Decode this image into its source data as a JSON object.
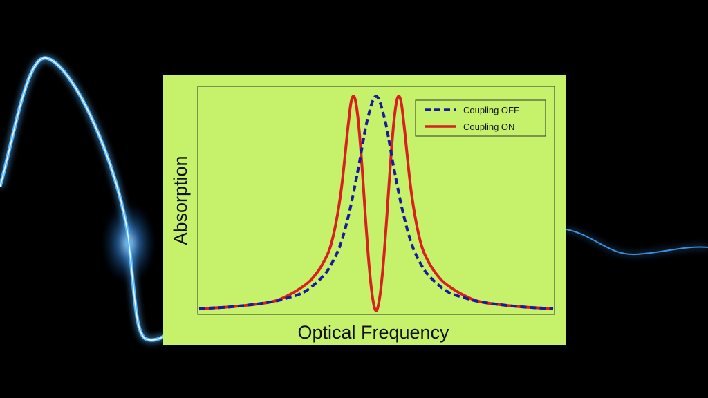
{
  "colors": {
    "background": "#000000",
    "panel": "#c6f26b",
    "light_streak": "#58b6ff",
    "series_off": "#1a1a9e",
    "series_on": "#d8201e"
  },
  "chart_data": {
    "type": "line",
    "title": "",
    "xlabel": "Optical Frequency",
    "ylabel": "Absorption",
    "xlim": [
      -10,
      10
    ],
    "ylim": [
      0,
      1.03
    ],
    "grid": false,
    "legend": {
      "placement": "top-right"
    },
    "series": [
      {
        "name": "Coupling OFF",
        "style": "dashed",
        "color": "#1a1a9e",
        "x": [
          -10,
          -8,
          -6,
          -5,
          -4,
          -3,
          -2.5,
          -2,
          -1.5,
          -1,
          -0.5,
          0,
          0.5,
          1,
          1.5,
          2,
          2.5,
          3,
          4,
          5,
          6,
          8,
          10
        ],
        "y": [
          0.02,
          0.03,
          0.05,
          0.07,
          0.1,
          0.17,
          0.23,
          0.32,
          0.47,
          0.67,
          0.89,
          1.0,
          0.89,
          0.67,
          0.47,
          0.32,
          0.23,
          0.17,
          0.1,
          0.07,
          0.05,
          0.03,
          0.02
        ]
      },
      {
        "name": "Coupling ON",
        "style": "solid",
        "color": "#d8201e",
        "x": [
          -10,
          -8,
          -6,
          -5,
          -4,
          -3.5,
          -3,
          -2.5,
          -2,
          -1.6,
          -1.4,
          -1.2,
          -1.0,
          -0.8,
          -0.6,
          -0.4,
          -0.2,
          0,
          0.2,
          0.4,
          0.6,
          0.8,
          1.0,
          1.2,
          1.4,
          1.6,
          2,
          2.5,
          3,
          3.5,
          4,
          5,
          6,
          8,
          10
        ],
        "y": [
          0.02,
          0.03,
          0.05,
          0.08,
          0.13,
          0.17,
          0.23,
          0.33,
          0.55,
          0.85,
          0.98,
          0.99,
          0.88,
          0.68,
          0.44,
          0.22,
          0.07,
          0.01,
          0.07,
          0.22,
          0.44,
          0.68,
          0.88,
          0.99,
          0.98,
          0.85,
          0.55,
          0.33,
          0.23,
          0.17,
          0.13,
          0.08,
          0.05,
          0.03,
          0.02
        ]
      }
    ]
  }
}
